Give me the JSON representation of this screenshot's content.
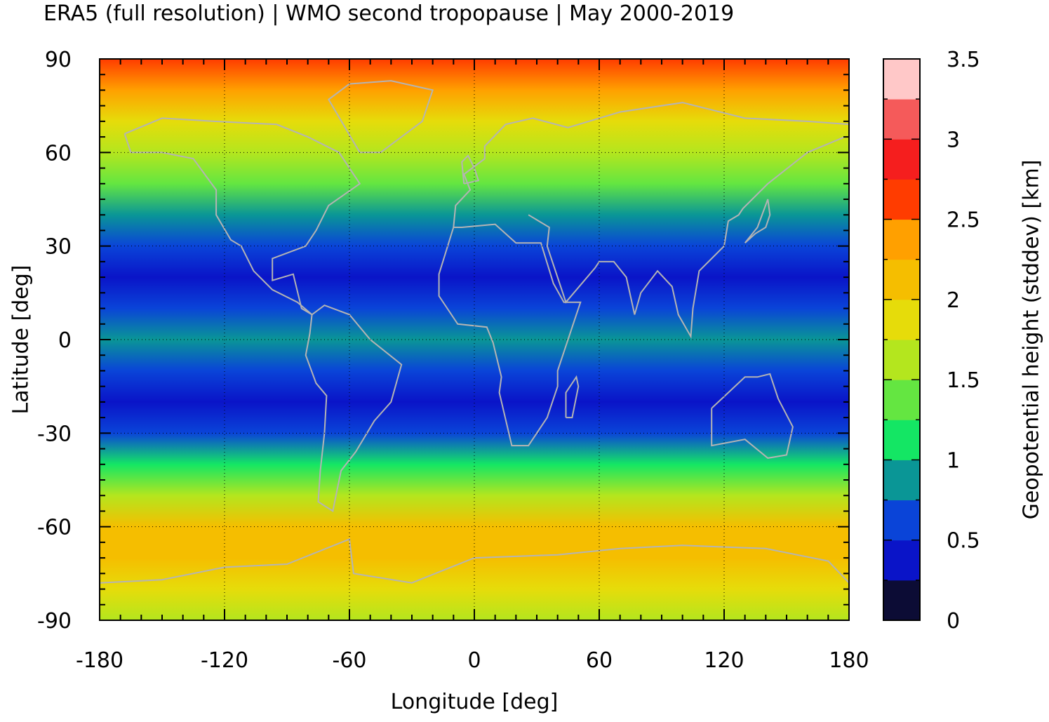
{
  "chart_data": {
    "type": "heatmap",
    "title": "ERA5 (full resolution) | WMO second tropopause | May 2000-2019",
    "xlabel": "Longitude [deg]",
    "ylabel": "Latitude [deg]",
    "xlim": [
      -180,
      180
    ],
    "ylim": [
      -90,
      90
    ],
    "xticks": [
      "-180",
      "-120",
      "-60",
      "0",
      "60",
      "120",
      "180"
    ],
    "yticks": [
      "90",
      "60",
      "30",
      "0",
      "-30",
      "-60",
      "-90"
    ],
    "grid": true,
    "colorbar": {
      "label": "Geopotential height (stddev) [km]",
      "range": [
        0,
        3.5
      ],
      "ticks": [
        "0",
        "0.5",
        "1",
        "1.5",
        "2",
        "2.5",
        "3",
        "3.5"
      ],
      "levels": [
        0,
        0.25,
        0.5,
        0.75,
        1.0,
        1.25,
        1.5,
        1.75,
        2.0,
        2.25,
        2.5,
        2.75,
        3.0,
        3.25,
        3.5
      ],
      "colors": [
        "#0c0c35",
        "#0a14c8",
        "#0a44d8",
        "#0a9696",
        "#14e664",
        "#64e641",
        "#b4e61e",
        "#e6dc0a",
        "#f5be00",
        "#ffa000",
        "#ff3c00",
        "#f51e1e",
        "#f55a5a",
        "#ffc8c8"
      ]
    },
    "zonal_profile": {
      "latitude": [
        90,
        80,
        70,
        60,
        50,
        40,
        30,
        20,
        10,
        0,
        -10,
        -20,
        -30,
        -40,
        -50,
        -60,
        -70,
        -80,
        -90
      ],
      "stddev_km": [
        2.6,
        2.3,
        1.8,
        1.5,
        1.3,
        0.95,
        0.65,
        0.45,
        0.5,
        0.8,
        0.5,
        0.45,
        0.7,
        1.0,
        1.6,
        2.0,
        2.0,
        1.9,
        1.6
      ]
    }
  }
}
